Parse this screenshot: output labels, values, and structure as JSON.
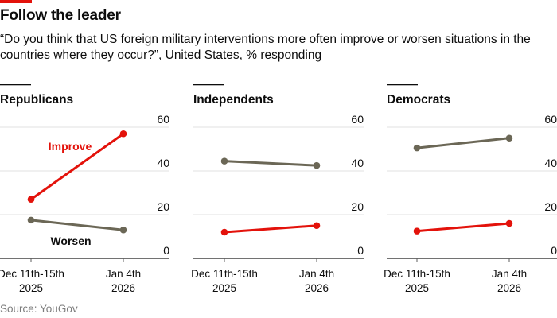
{
  "header": {
    "title": "Follow the leader",
    "subtitle": "“Do you think that US foreign military interventions more often improve or worsen situations in the countries where they occur?”, United States, % responding",
    "accent_color": "#e3120b"
  },
  "footer": {
    "source": "Source: YouGov"
  },
  "chart_data": [
    {
      "type": "line",
      "title": "Republicans",
      "x": [
        "Dec 11th-15th 2025",
        "Jan 4th 2026"
      ],
      "x_tick_lines": [
        [
          "Dec 11th-15th",
          "2025"
        ],
        [
          "Jan 4th",
          "2026"
        ]
      ],
      "ylim": [
        0,
        60
      ],
      "yticks": [
        0,
        20,
        40,
        60
      ],
      "grid": true,
      "series": [
        {
          "name": "Improve",
          "color": "#e3120b",
          "values": [
            27,
            57
          ],
          "label_shown": true
        },
        {
          "name": "Worsen",
          "color": "#6b6756",
          "values": [
            17.5,
            13
          ],
          "label_shown": true
        }
      ]
    },
    {
      "type": "line",
      "title": "Independents",
      "x": [
        "Dec 11th-15th 2025",
        "Jan 4th 2026"
      ],
      "x_tick_lines": [
        [
          "Dec 11th-15th",
          "2025"
        ],
        [
          "Jan 4th",
          "2026"
        ]
      ],
      "ylim": [
        0,
        60
      ],
      "yticks": [
        0,
        20,
        40,
        60
      ],
      "grid": true,
      "series": [
        {
          "name": "Improve",
          "color": "#e3120b",
          "values": [
            12,
            15
          ]
        },
        {
          "name": "Worsen",
          "color": "#6b6756",
          "values": [
            44.5,
            42.5
          ]
        }
      ]
    },
    {
      "type": "line",
      "title": "Democrats",
      "x": [
        "Dec 11th-15th 2025",
        "Jan 4th 2026"
      ],
      "x_tick_lines": [
        [
          "Dec 11th-15th",
          "2025"
        ],
        [
          "Jan 4th",
          "2026"
        ]
      ],
      "ylim": [
        0,
        60
      ],
      "yticks": [
        0,
        20,
        40,
        60
      ],
      "grid": true,
      "series": [
        {
          "name": "Improve",
          "color": "#e3120b",
          "values": [
            12.5,
            16
          ]
        },
        {
          "name": "Worsen",
          "color": "#6b6756",
          "values": [
            50.5,
            55
          ]
        }
      ]
    }
  ]
}
